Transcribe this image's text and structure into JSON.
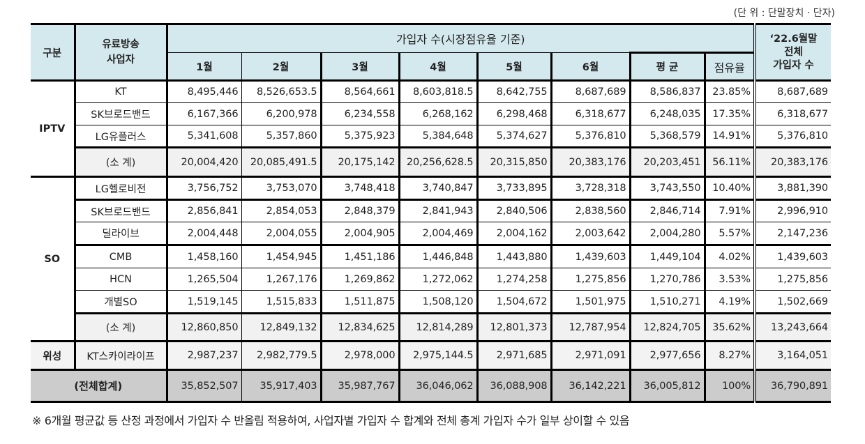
{
  "unit_label": "(단 위 : 단말장치 · 단자)",
  "header": {
    "category": "구분",
    "provider_line1": "유료방송",
    "provider_line2": "사업자",
    "subscribers_group": "가입자 수(시장점유율 기준)",
    "months": [
      "1월",
      "2월",
      "3월",
      "4월",
      "5월",
      "6월"
    ],
    "average": "평 균",
    "share": "점유율",
    "total_line1": "‘22.6월말",
    "total_line2": "전체",
    "total_line3": "가입자 수"
  },
  "groups": [
    {
      "label": "IPTV",
      "rows": [
        {
          "name": "KT",
          "months": [
            "8,495,446",
            "8,526,653.5",
            "8,564,661",
            "8,603,818.5",
            "8,642,755",
            "8,687,689"
          ],
          "average": "8,586,837",
          "share": "23.85%",
          "total": "8,687,689"
        },
        {
          "name": "SK브로드밴드",
          "months": [
            "6,167,366",
            "6,200,978",
            "6,234,558",
            "6,268,162",
            "6,298,468",
            "6,318,677"
          ],
          "average": "6,248,035",
          "share": "17.35%",
          "total": "6,318,677"
        },
        {
          "name": "LG유플러스",
          "months": [
            "5,341,608",
            "5,357,860",
            "5,375,923",
            "5,384,648",
            "5,374,627",
            "5,376,810"
          ],
          "average": "5,368,579",
          "share": "14.91%",
          "total": "5,376,810"
        }
      ],
      "subtotal": {
        "name": "(소 계)",
        "months": [
          "20,004,420",
          "20,085,491.5",
          "20,175,142",
          "20,256,628.5",
          "20,315,850",
          "20,383,176"
        ],
        "average": "20,203,451",
        "share": "56.11%",
        "total": "20,383,176"
      }
    },
    {
      "label": "SO",
      "rows": [
        {
          "name": "LG헬로비전",
          "months": [
            "3,756,752",
            "3,753,070",
            "3,748,418",
            "3,740,847",
            "3,733,895",
            "3,728,318"
          ],
          "average": "3,743,550",
          "share": "10.40%",
          "total": "3,881,390"
        },
        {
          "name": "SK브로드밴드",
          "months": [
            "2,856,841",
            "2,854,053",
            "2,848,379",
            "2,841,943",
            "2,840,506",
            "2,838,560"
          ],
          "average": "2,846,714",
          "share": "7.91%",
          "total": "2,996,910"
        },
        {
          "name": "딜라이브",
          "months": [
            "2,004,448",
            "2,004,055",
            "2,004,905",
            "2,004,469",
            "2,004,162",
            "2,003,642"
          ],
          "average": "2,004,280",
          "share": "5.57%",
          "total": "2,147,236"
        },
        {
          "name": "CMB",
          "months": [
            "1,458,160",
            "1,454,945",
            "1,451,186",
            "1,446,848",
            "1,443,880",
            "1,439,603"
          ],
          "average": "1,449,104",
          "share": "4.02%",
          "total": "1,439,603"
        },
        {
          "name": "HCN",
          "months": [
            "1,265,504",
            "1,267,176",
            "1,269,862",
            "1,272,062",
            "1,274,258",
            "1,275,856"
          ],
          "average": "1,270,786",
          "share": "3.53%",
          "total": "1,275,856"
        },
        {
          "name": "개별SO",
          "months": [
            "1,519,145",
            "1,515,833",
            "1,511,875",
            "1,508,120",
            "1,504,672",
            "1,501,975"
          ],
          "average": "1,510,271",
          "share": "4.19%",
          "total": "1,502,669"
        }
      ],
      "subtotal": {
        "name": "(소 계)",
        "months": [
          "12,860,850",
          "12,849,132",
          "12,834,625",
          "12,814,289",
          "12,801,373",
          "12,787,954"
        ],
        "average": "12,824,705",
        "share": "35.62%",
        "total": "13,243,664"
      }
    },
    {
      "label": "위성",
      "rows": [
        {
          "name": "KT스카이라이프",
          "months": [
            "2,987,237",
            "2,982,779.5",
            "2,978,000",
            "2,975,144.5",
            "2,971,685",
            "2,971,091"
          ],
          "average": "2,977,656",
          "share": "8.27%",
          "total": "3,164,051"
        }
      ]
    }
  ],
  "grand_total": {
    "name": "(전체합계)",
    "months": [
      "35,852,507",
      "35,917,403",
      "35,987,767",
      "36,046,062",
      "36,088,908",
      "36,142,221"
    ],
    "average": "36,005,812",
    "share": "100%",
    "total": "36,790,891"
  },
  "footnote": "※  6개월 평균값 등 산정 과정에서 가입자 수 반올림 적용하여, 사업자별 가입자  수 합계와 전체 총계 가입자 수가 일부 상이할 수 있음"
}
